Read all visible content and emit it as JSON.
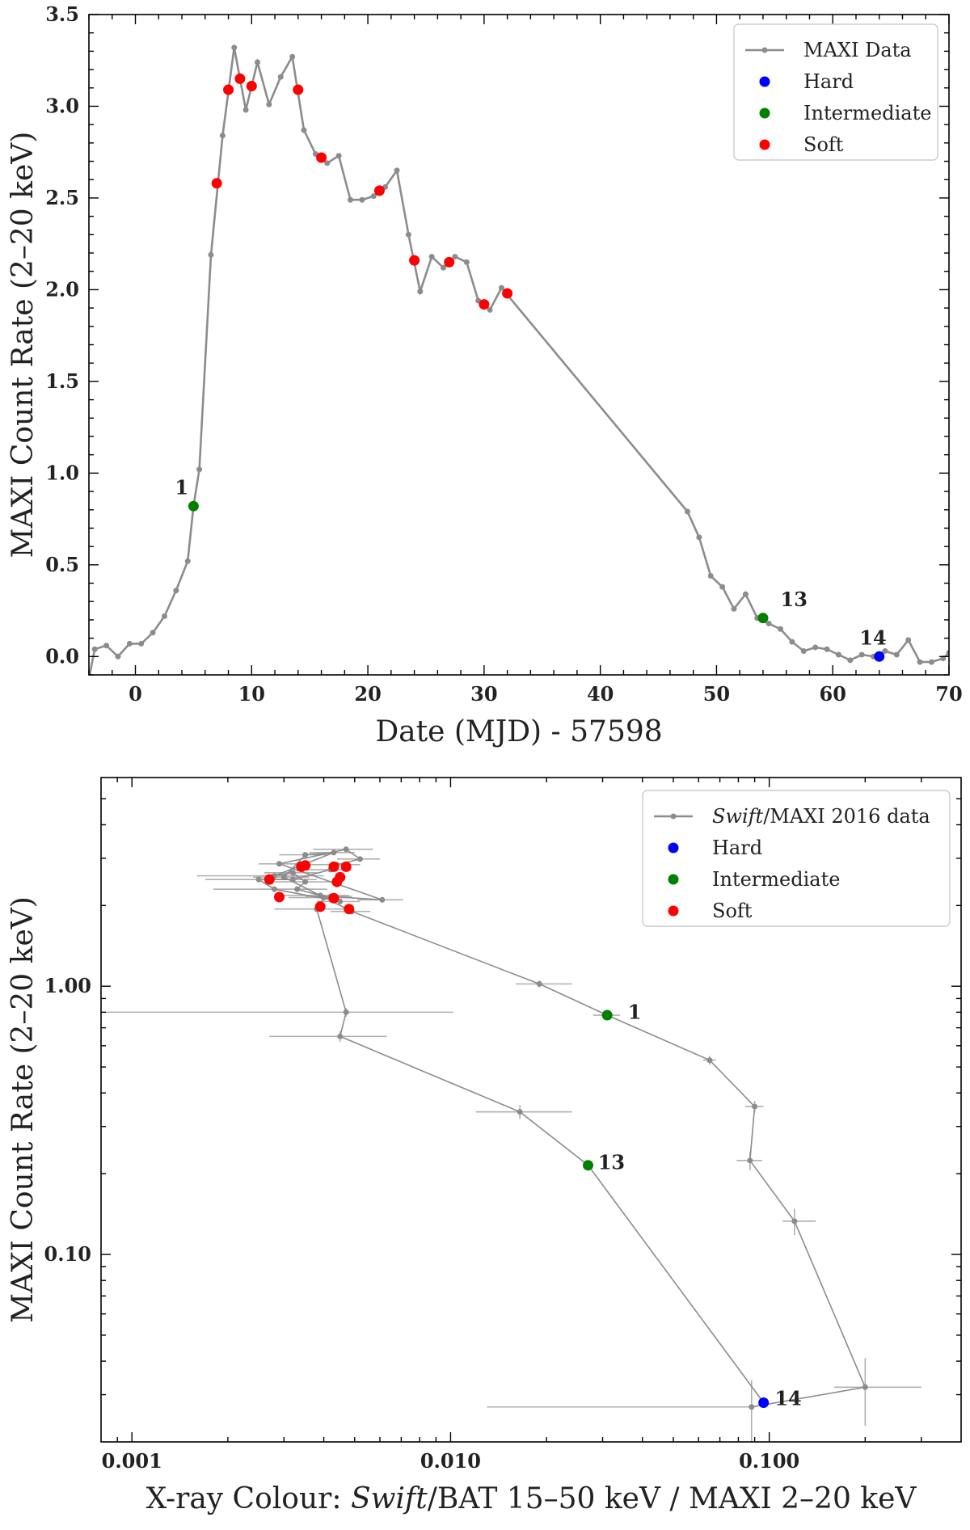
{
  "chart_data": [
    {
      "type": "line",
      "xlabel": "Date (MJD) - 57598",
      "ylabel": "MAXI Count Rate (2–20 keV)",
      "xlim": [
        -4,
        70
      ],
      "ylim": [
        -0.1,
        3.5
      ],
      "xticks": [
        0,
        10,
        20,
        30,
        40,
        50,
        60,
        70
      ],
      "yticks": [
        0.0,
        0.5,
        1.0,
        1.5,
        2.0,
        2.5,
        3.0,
        3.5
      ],
      "x_tick_labels": [
        "0",
        "10",
        "20",
        "30",
        "40",
        "50",
        "60",
        "70"
      ],
      "y_tick_labels": [
        "0.0",
        "0.5",
        "1.0",
        "1.5",
        "2.0",
        "2.5",
        "3.0",
        "3.5"
      ],
      "legend_position": "top-right",
      "legend": [
        "MAXI Data",
        "Hard",
        "Intermediate",
        "Soft"
      ],
      "colors": {
        "line": "#8c8c8c",
        "hard": "#0000ff",
        "intermediate": "#008000",
        "soft": "#ff0000"
      },
      "series": [
        {
          "name": "MAXI Data",
          "x": [
            -4,
            -3.5,
            -2.5,
            -1.5,
            -0.5,
            0.5,
            1.5,
            2.5,
            3.5,
            4.5,
            5,
            5.5,
            6.5,
            7.5,
            8.5,
            9.5,
            10.5,
            11.5,
            12.5,
            13.5,
            14.5,
            15.5,
            16.5,
            17.5,
            18.5,
            19.5,
            20.5,
            21.5,
            22.5,
            23.5,
            24.5,
            25.5,
            26.5,
            27.5,
            28.5,
            29.5,
            30.5,
            31.5,
            47.5,
            48.5,
            49.5,
            50.5,
            51.5,
            52.5,
            53.5,
            54.5,
            55.5,
            56.5,
            57.5,
            58.5,
            59.5,
            60.5,
            61.5,
            62.5,
            63.5,
            64.5,
            65.5,
            66.5,
            67.5,
            68.5,
            69.5,
            70
          ],
          "y": [
            -0.12,
            0.04,
            0.06,
            0.0,
            0.07,
            0.07,
            0.13,
            0.22,
            0.36,
            0.52,
            0.82,
            1.02,
            2.19,
            2.84,
            3.32,
            2.98,
            3.24,
            3.01,
            3.16,
            3.27,
            2.87,
            2.74,
            2.69,
            2.73,
            2.49,
            2.49,
            2.51,
            2.56,
            2.65,
            2.3,
            1.99,
            2.18,
            2.12,
            2.18,
            2.15,
            1.94,
            1.89,
            2.01,
            0.79,
            0.65,
            0.44,
            0.38,
            0.26,
            0.34,
            0.21,
            0.18,
            0.15,
            0.08,
            0.03,
            0.05,
            0.04,
            0.01,
            -0.02,
            0.01,
            0.0,
            0.03,
            0.01,
            0.09,
            -0.03,
            -0.03,
            -0.01,
            0.02
          ]
        },
        {
          "name": "Hard",
          "x": [
            64
          ],
          "y": [
            0.0
          ]
        },
        {
          "name": "Intermediate",
          "x": [
            5,
            54
          ],
          "y": [
            0.82,
            0.21
          ]
        },
        {
          "name": "Soft",
          "x": [
            7,
            8,
            9,
            10,
            14,
            16,
            21,
            24,
            27,
            30,
            32
          ],
          "y": [
            2.58,
            3.09,
            3.15,
            3.11,
            3.09,
            2.72,
            2.54,
            2.16,
            2.15,
            1.92,
            1.98
          ]
        }
      ],
      "annotations": [
        {
          "text": "1",
          "x": 3.4,
          "y": 0.92
        },
        {
          "text": "13",
          "x": 55.5,
          "y": 0.31
        },
        {
          "text": "14",
          "x": 62.3,
          "y": 0.1
        }
      ]
    },
    {
      "type": "scatter",
      "xlabel_parts": [
        {
          "text": "X-ray Colour: ",
          "italic": false
        },
        {
          "text": "Swift",
          "italic": true
        },
        {
          "text": "/BAT 15–50 keV / MAXI 2–20 keV",
          "italic": false
        }
      ],
      "ylabel": "MAXI Count Rate (2–20 keV)",
      "x_scale": "log",
      "y_scale": "log",
      "xlim": [
        0.0008,
        0.4
      ],
      "ylim": [
        0.02,
        6.0
      ],
      "xticks": [
        0.001,
        0.01,
        0.1
      ],
      "yticks": [
        0.1,
        1.0
      ],
      "x_tick_labels": [
        "0.001",
        "0.010",
        "0.100"
      ],
      "y_tick_labels": [
        "0.10",
        "1.00"
      ],
      "legend_position": "top-right",
      "legend": [
        [
          {
            "text": "Swift",
            "italic": true
          },
          {
            "text": "/MAXI 2016 data",
            "italic": false
          }
        ],
        [
          {
            "text": "Hard",
            "italic": false
          }
        ],
        [
          {
            "text": "Intermediate",
            "italic": false
          }
        ],
        [
          {
            "text": "Soft",
            "italic": false
          }
        ]
      ],
      "colors": {
        "line": "#8c8c8c",
        "error": "#b0b0b0",
        "hard": "#0000ff",
        "intermediate": "#008000",
        "soft": "#ff0000"
      },
      "track": {
        "x": [
          0.088,
          0.2,
          0.12,
          0.087,
          0.09,
          0.065,
          0.031,
          0.019,
          0.0049,
          0.003,
          0.0035,
          0.0043,
          0.0028,
          0.0032,
          0.0035,
          0.0033,
          0.0039,
          0.0045,
          0.0028,
          0.0025,
          0.0032,
          0.0042,
          0.0044,
          0.0052,
          0.0047,
          0.0029,
          0.0061,
          0.0042,
          0.004,
          0.0038,
          0.0047,
          0.0045,
          0.0165,
          0.027,
          0.096
        ],
        "y": [
          0.027,
          0.032,
          0.133,
          0.224,
          0.356,
          0.53,
          0.78,
          1.02,
          1.9,
          2.55,
          3.09,
          3.15,
          2.58,
          2.65,
          2.45,
          2.3,
          2.18,
          2.07,
          2.3,
          2.5,
          2.5,
          2.72,
          2.84,
          2.98,
          3.24,
          2.86,
          2.1,
          2.16,
          2.14,
          1.94,
          0.8,
          0.65,
          0.34,
          0.215,
          0.028
        ],
        "xerr_low": [
          0.075,
          0.04,
          0.01,
          0.008,
          0.006,
          0.003,
          0.003,
          0.003,
          0.0007,
          0.0006,
          0.0006,
          0.0007,
          0.0012,
          0.0006,
          0.0007,
          0.0008,
          0.0009,
          0.0007,
          0.001,
          0.0008,
          0.0006,
          0.0007,
          0.0008,
          0.0008,
          0.001,
          0.0004,
          0.001,
          0.0007,
          0.0009,
          0.001,
          0.0039,
          0.0018,
          0.0045,
          0.0,
          0.0
        ],
        "xerr_high": [
          0.0,
          0.1,
          0.02,
          0.008,
          0.006,
          0.003,
          0.003,
          0.005,
          0.0007,
          0.0006,
          0.0006,
          0.0007,
          0.0012,
          0.0006,
          0.0007,
          0.0008,
          0.0009,
          0.0007,
          0.001,
          0.0008,
          0.0006,
          0.0007,
          0.0008,
          0.0008,
          0.001,
          0.0004,
          0.001,
          0.0007,
          0.0009,
          0.001,
          0.0055,
          0.0018,
          0.0075,
          0.0,
          0.0
        ],
        "yerr": [
          0.007,
          0.009,
          0.015,
          0.018,
          0.018,
          0.02,
          0.0,
          0.03,
          0.05,
          0.05,
          0.05,
          0.05,
          0.05,
          0.05,
          0.05,
          0.05,
          0.05,
          0.05,
          0.05,
          0.05,
          0.05,
          0.05,
          0.05,
          0.05,
          0.05,
          0.05,
          0.05,
          0.05,
          0.05,
          0.05,
          0.03,
          0.03,
          0.02,
          0.0,
          0.0
        ]
      },
      "series": [
        {
          "name": "Hard",
          "x": [
            0.096
          ],
          "y": [
            0.028
          ]
        },
        {
          "name": "Intermediate",
          "x": [
            0.031,
            0.027
          ],
          "y": [
            0.78,
            0.215
          ]
        },
        {
          "name": "Soft",
          "x": [
            0.0035,
            0.0034,
            0.0043,
            0.0047,
            0.0045,
            0.0044,
            0.0027,
            0.0029,
            0.0043,
            0.0039,
            0.0048
          ],
          "y": [
            2.82,
            2.79,
            2.79,
            2.79,
            2.55,
            2.45,
            2.5,
            2.15,
            2.13,
            1.98,
            1.94
          ]
        }
      ],
      "annotations": [
        {
          "text": "1",
          "x": 0.036,
          "y": 0.8
        },
        {
          "text": "13",
          "x": 0.029,
          "y": 0.22
        },
        {
          "text": "14",
          "x": 0.104,
          "y": 0.029
        }
      ]
    }
  ]
}
